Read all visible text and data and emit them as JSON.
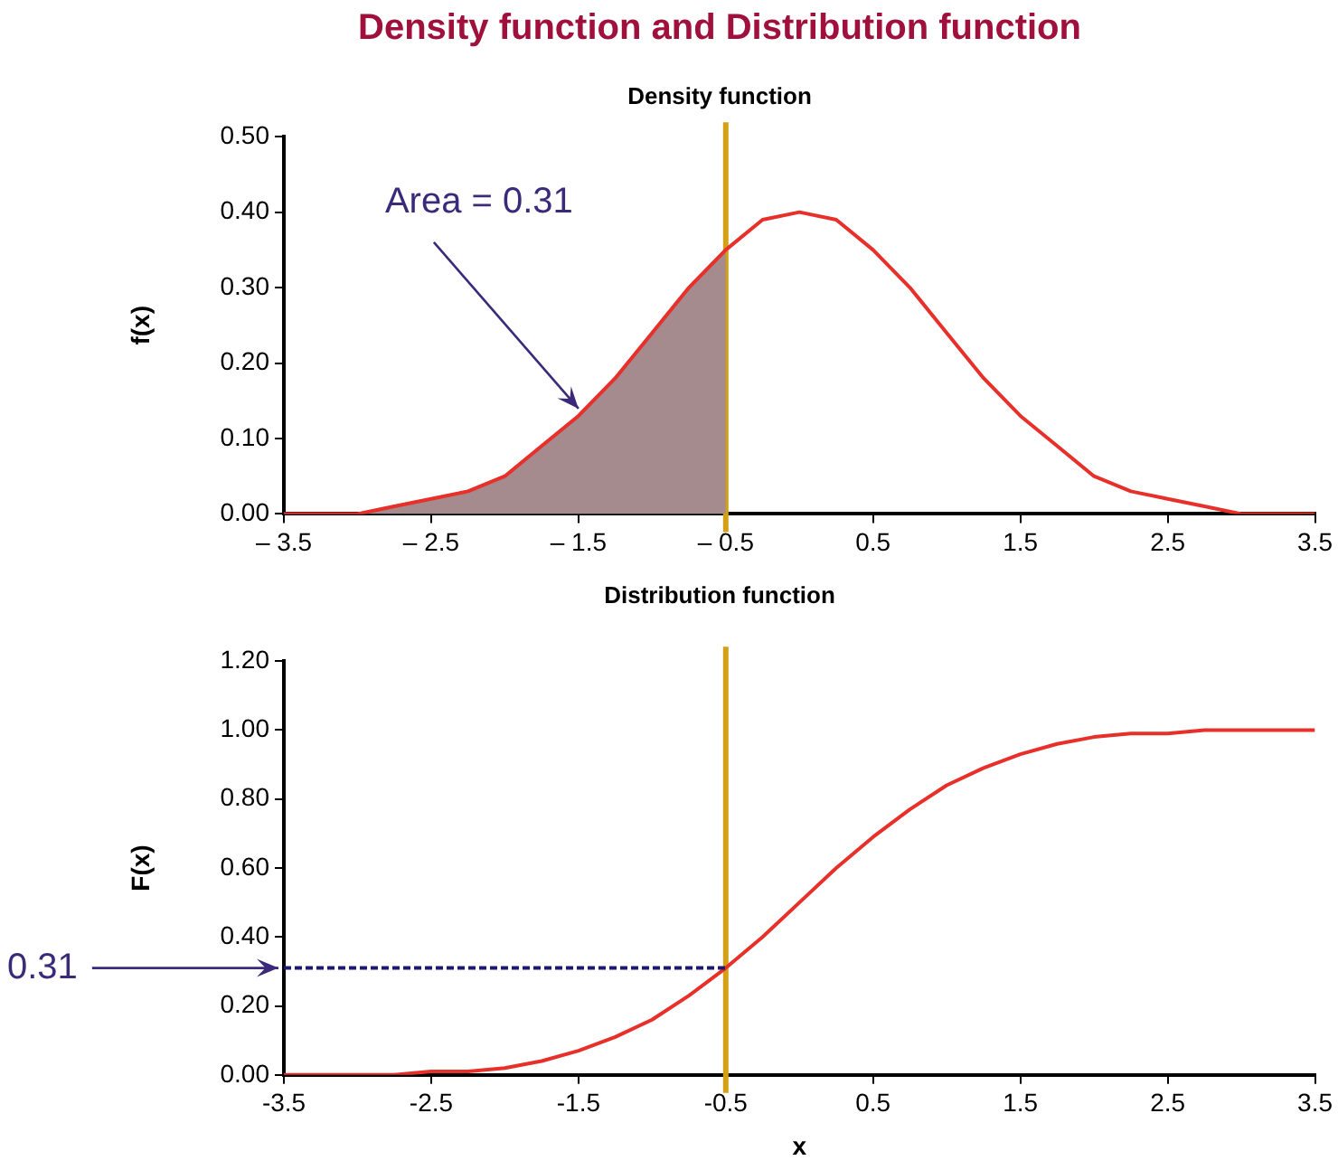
{
  "chart_data": [
    {
      "type": "line",
      "title": "Density function and Distribution function",
      "subtitle": "Density function",
      "ylabel": "f(x)",
      "series": [
        {
          "type": "area",
          "color": "#a58a8e",
          "x": [
            -3.5,
            -3.25,
            -3,
            -2.75,
            -2.5,
            -2.25,
            -2,
            -1.75,
            -1.5,
            -1.25,
            -1,
            -0.75,
            -0.5
          ],
          "values": [
            0.0,
            0.0,
            0.0,
            0.01,
            0.02,
            0.03,
            0.05,
            0.09,
            0.13,
            0.18,
            0.24,
            0.3,
            0.35
          ]
        },
        {
          "type": "line",
          "color": "#e8302a",
          "x": [
            -3.5,
            -3.25,
            -3,
            -2.75,
            -2.5,
            -2.25,
            -2,
            -1.75,
            -1.5,
            -1.25,
            -1,
            -0.75,
            -0.5,
            -0.25,
            0,
            0.25,
            0.5,
            0.75,
            1,
            1.25,
            1.5,
            1.75,
            2,
            2.25,
            2.5,
            2.75,
            3,
            3.25,
            3.5
          ],
          "values": [
            0.0,
            0.0,
            0.0,
            0.01,
            0.02,
            0.03,
            0.05,
            0.09,
            0.13,
            0.18,
            0.24,
            0.3,
            0.35,
            0.39,
            0.4,
            0.39,
            0.35,
            0.3,
            0.24,
            0.18,
            0.13,
            0.09,
            0.05,
            0.03,
            0.02,
            0.01,
            0.0,
            0.0,
            0.0
          ]
        }
      ],
      "xlim": [
        -3.5,
        3.5
      ],
      "xticks": [
        {
          "value": -3.5,
          "label": "– 3.5"
        },
        {
          "value": -2.5,
          "label": "– 2.5"
        },
        {
          "value": -1.5,
          "label": "– 1.5"
        },
        {
          "value": -0.5,
          "label": "– 0.5"
        },
        0.5,
        1.5,
        2.5,
        3.5
      ],
      "ylim": [
        0,
        0.5
      ],
      "yticks": [
        {
          "value": 0,
          "label": "0.00"
        },
        {
          "value": 0.1,
          "label": "0.10"
        },
        {
          "value": 0.2,
          "label": "0.20"
        },
        {
          "value": 0.3,
          "label": "0.30"
        },
        {
          "value": 0.4,
          "label": "0.40"
        },
        {
          "value": 0.5,
          "label": "0.50"
        }
      ],
      "ref_lines": [
        {
          "axis": "x",
          "value": -0.5,
          "color": "#d4a017"
        }
      ],
      "annotations": [
        {
          "text": "Area = 0.31",
          "x": -1.5,
          "y": 0.13
        }
      ],
      "grid": false,
      "legend": false,
      "marker": "none"
    },
    {
      "type": "line",
      "title": "Distribution function",
      "xlabel": "x",
      "ylabel": "F(x)",
      "series": [
        {
          "color": "#e8302a",
          "x": [
            -3.5,
            -3.25,
            -3,
            -2.75,
            -2.5,
            -2.25,
            -2,
            -1.75,
            -1.5,
            -1.25,
            -1,
            -0.75,
            -0.5,
            -0.25,
            0,
            0.25,
            0.5,
            0.75,
            1,
            1.25,
            1.5,
            1.75,
            2,
            2.25,
            2.5,
            2.75,
            3,
            3.25,
            3.5
          ],
          "values": [
            0.0,
            0.0,
            0.0,
            0.0,
            0.01,
            0.01,
            0.02,
            0.04,
            0.07,
            0.11,
            0.16,
            0.23,
            0.31,
            0.4,
            0.5,
            0.6,
            0.69,
            0.77,
            0.84,
            0.89,
            0.93,
            0.96,
            0.98,
            0.99,
            0.99,
            1.0,
            1.0,
            1.0,
            1.0
          ]
        },
        {
          "color": "#1f1a6e",
          "line_style": "dashed",
          "x": [
            -3.5,
            -0.5
          ],
          "values": [
            0.31,
            0.31
          ]
        }
      ],
      "xlim": [
        -3.5,
        3.5
      ],
      "xticks": [
        -3.5,
        -2.5,
        -1.5,
        -0.5,
        0.5,
        1.5,
        2.5,
        3.5
      ],
      "ylim": [
        0,
        1.2
      ],
      "yticks": [
        {
          "value": 0,
          "label": "0.00"
        },
        {
          "value": 0.2,
          "label": "0.20"
        },
        {
          "value": 0.4,
          "label": "0.40"
        },
        {
          "value": 0.6,
          "label": "0.60"
        },
        {
          "value": 0.8,
          "label": "0.80"
        },
        {
          "value": 1,
          "label": "1.00"
        },
        {
          "value": 1.2,
          "label": "1.20"
        }
      ],
      "ref_lines": [
        {
          "axis": "x",
          "value": -0.5,
          "color": "#d4a017"
        }
      ],
      "annotations": [
        {
          "text": "0.31",
          "x": -3.5,
          "y": 0.31
        }
      ],
      "grid": false,
      "legend": false,
      "marker": "none"
    }
  ]
}
